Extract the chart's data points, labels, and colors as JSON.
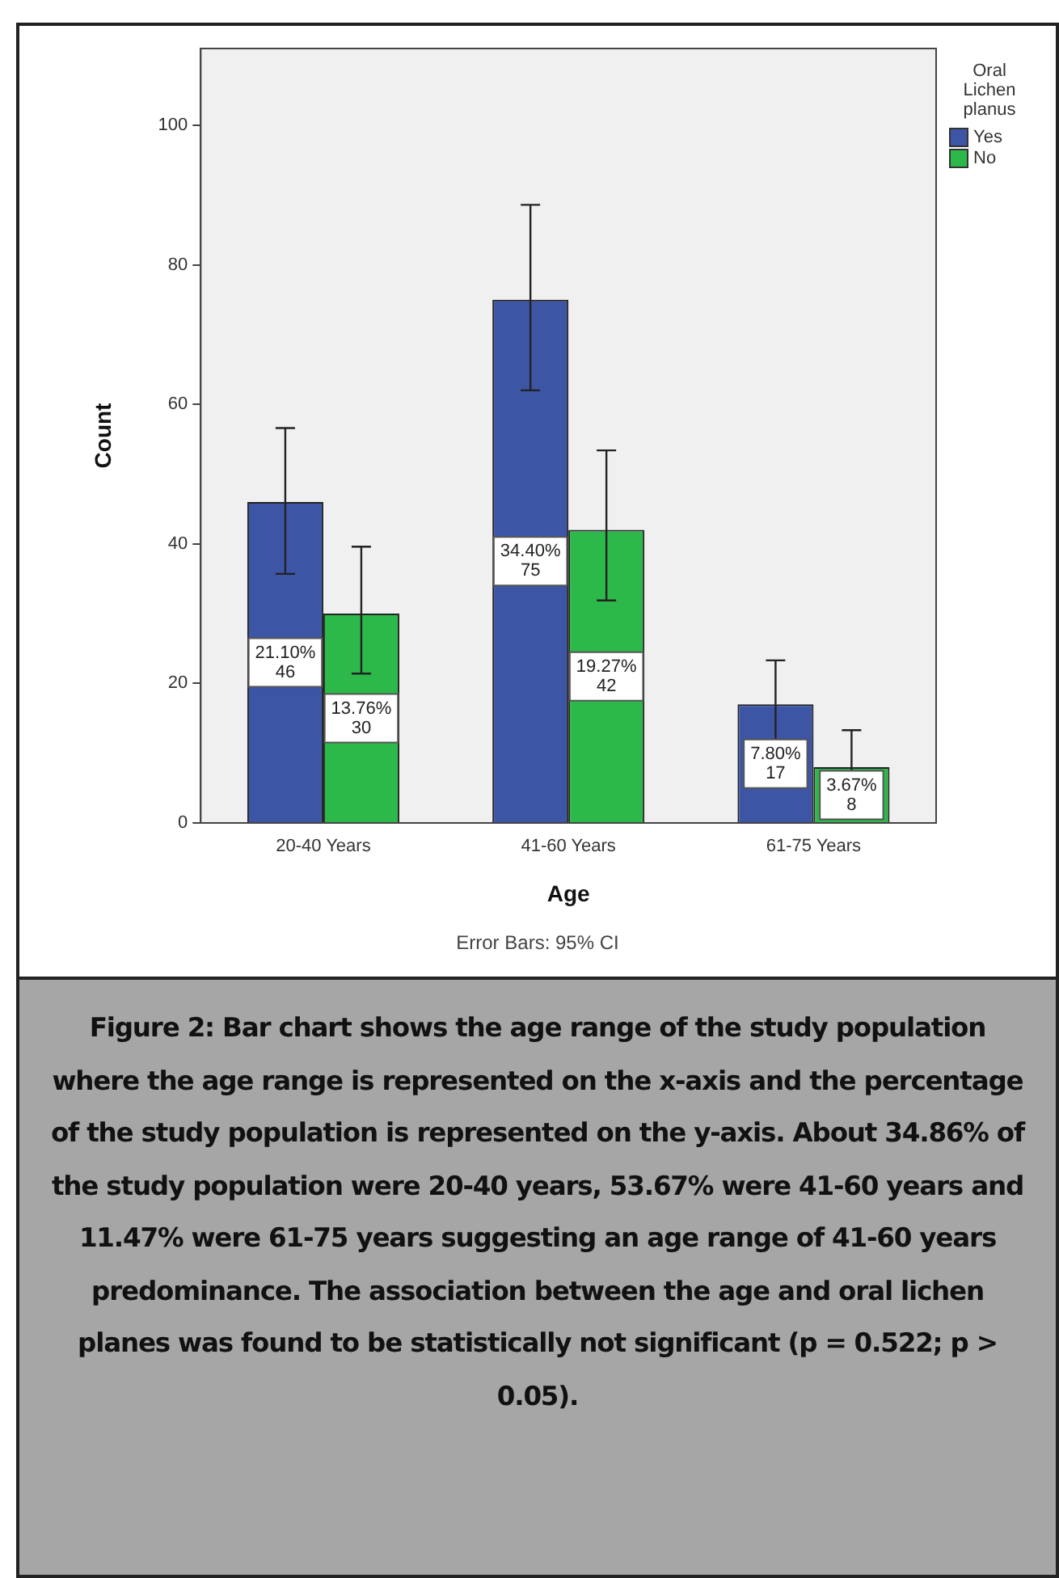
{
  "chart_data": {
    "type": "bar",
    "categories": [
      "20-40 Years",
      "41-60 Years",
      "61-75 Years"
    ],
    "xlabel": "Age",
    "ylabel": "Count",
    "legend_title": "Oral Lichen planus",
    "legend": "top right",
    "grid": false,
    "ylim": [
      0,
      111
    ],
    "yticks": [
      0,
      20,
      40,
      60,
      80,
      100
    ],
    "series": [
      {
        "name": "Yes",
        "color": "#3c55a5",
        "values": [
          46,
          75,
          17
        ],
        "errors": [
          [
            35.7,
            56.6
          ],
          [
            62,
            88.6
          ],
          [
            11.6,
            23.3
          ]
        ],
        "value_labels": [
          "21.10%\n46",
          "34.40%\n75",
          "7.80%\n17"
        ]
      },
      {
        "name": "No",
        "color": "#2db84a",
        "values": [
          30,
          42,
          8
        ],
        "errors": [
          [
            21.4,
            39.6
          ],
          [
            31.9,
            53.4
          ],
          [
            6.3,
            13.3
          ]
        ],
        "value_labels": [
          "13.76%\n30",
          "19.27%\n42",
          "3.67%\n8"
        ]
      }
    ],
    "annotations": [
      "Error Bars: 95% CI",
      "Figure 2:  Bar chart shows the age range of the study population where the age range is represented on the x-axis and the percentage of the study population is represented on the y-axis. About 34.86% of the study population were 20-40 years, 53.67% were 41-60 years and 11.47% were 61-75 years suggesting an age range of 41-60 years predominance. The association between the age and oral lichen planes was found to be statistically not significant (p = 0.522; p > 0.05)."
    ]
  }
}
